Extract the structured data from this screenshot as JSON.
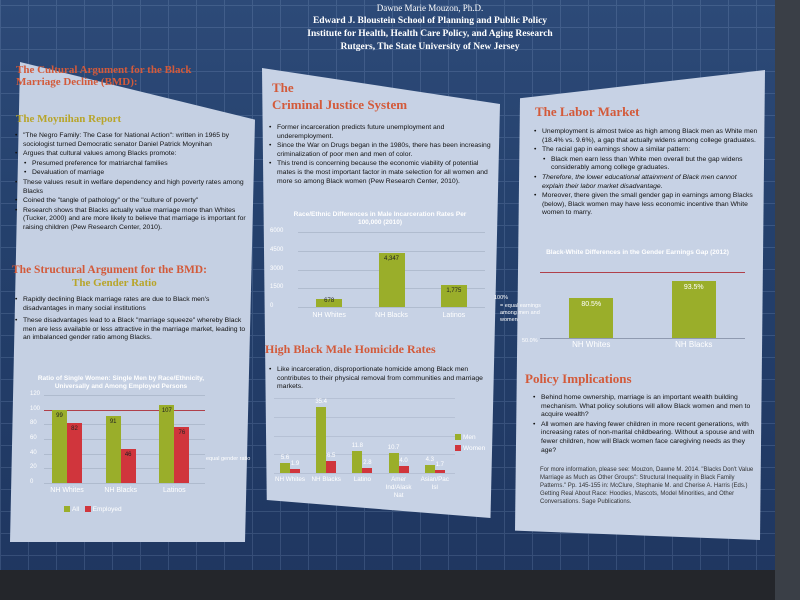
{
  "header": {
    "name": "Dawne Marie Mouzon, Ph.D.",
    "school": "Edward J. Bloustein School of Planning and Public Policy",
    "institute": "Institute for Health, Health Care Policy, and Aging Research",
    "university": "Rutgers, The State University of New Jersey"
  },
  "left": {
    "h1": "The Cultural Argument for the Black Marriage Decline (BMD):",
    "h1_sub": "The Moynihan Report",
    "bullets": [
      "\"The Negro Family: The Case for National Action\": written in 1965 by sociologist turned Democratic senator Daniel Patrick Moynihan",
      "Argues that cultural values among Blacks promote:",
      "Presumed preference for matriarchal families",
      "Devaluation of marriage",
      "These values result in welfare dependency and high poverty rates among Blacks",
      "Coined the \"tangle of pathology\" or the \"culture of poverty\"",
      "Research shows that Blacks actually value marriage more than Whites (Tucker, 2000) and are more likely to believe that marriage is important for raising children (Pew Research Center, 2010)."
    ],
    "h2": "The Structural Argument for the BMD:",
    "h2_sub": "The Gender Ratio",
    "bullets2": [
      "Rapidly declining Black marriage rates are due to Black men's disadvantages in many social institutions",
      "These disadvantages lead to a Black \"marriage squeeze\" whereby Black men are less available or less attractive in the marriage market, leading to an imbalanced gender ratio among Blacks."
    ],
    "chart_title": "Ratio of Single Women: Single Men by Race/Ethnicity, Universally and Among Employed Persons",
    "y_ticks": [
      "120",
      "100",
      "80",
      "60",
      "40",
      "20",
      "0"
    ],
    "equal_label": "equal gender ratio",
    "legend_all": "All",
    "legend_employed": "Employed"
  },
  "middle": {
    "h1": "The",
    "h1b": "Criminal Justice System",
    "bullets": [
      "Former incarceration predicts future unemployment and underemployment.",
      "Since the War on Drugs began in the 1980s, there has been increasing criminalization of poor men and men of color.",
      "This trend is concerning because the economic viability of potential mates is the most important factor in mate selection for all women and more so among Black women (Pew Research Center, 2010)."
    ],
    "chart_title": "Race/Ethnic Differences in Male Incarceration Rates Per 100,000 (2010)",
    "y_ticks": [
      "6000",
      "4500",
      "3000",
      "1500",
      "0"
    ],
    "h2": "High Black Male Homicide Rates",
    "bullets2": [
      "Like incarceration, disproportionate homicide among Black men contributes to their physical removal from communities and marriage markets."
    ],
    "legend_men": "Men",
    "legend_women": "Women"
  },
  "right": {
    "h1": "The Labor Market",
    "bullets": [
      "Unemployment is almost twice as high among Black men as White men (18.4% vs. 9.6%), a gap that actually widens among college graduates.",
      "The racial gap in earnings show a similar pattern:",
      "Black men earn less than White men overall but the gap widens considerably among college graduates.",
      "Therefore, the lower educational attainment of Black men cannot explain their labor market disadvantage.",
      "Moreover, there given the small gender gap in earnings among Blacks (below), Black women may have less economic incentive than White women to marry."
    ],
    "chart_title": "Black-White Differences in the Gender Earnings Gap (2012)",
    "note_100": "100%",
    "note_equal": "= equal earnings among men and women",
    "note_50": "50.0%",
    "h2": "Policy Implications",
    "bullets2": [
      "Behind home ownership, marriage is an important wealth building mechanism. What policy solutions will allow Black women and men to acquire wealth?",
      "All women are having fewer children in more recent generations, with increasing rates of non-marital childbearing. Without a spouse and with fewer children, how will Black women face caregiving needs as they age?"
    ],
    "refs": "For more information, please see: Mouzon, Dawne M. 2014. \"Blacks Don't Value Marriage as Much as Other Groups\": Structural Inequality in Black Family Patterns.\" Pp. 145-155 in: McClure, Stephanie M. and Cherise A. Harris (Eds.) Getting Real About Race: Hoodies, Mascots, Model Minorities, and Other Conversations. Sage Publications."
  },
  "colors": {
    "green": "#9aae2a",
    "red": "#d0353c",
    "chart_bg": "#2f4a78"
  },
  "chart_data": [
    {
      "type": "bar",
      "title": "Ratio of Single Women: Single Men by Race/Ethnicity, Universally and Among Employed Persons",
      "categories": [
        "NH Whites",
        "NH Blacks",
        "Latinos"
      ],
      "series": [
        {
          "name": "All",
          "values": [
            99,
            91,
            107
          ]
        },
        {
          "name": "Employed",
          "values": [
            82,
            46,
            76
          ]
        }
      ],
      "ylim": [
        0,
        120
      ]
    },
    {
      "type": "bar",
      "title": "Race/Ethnic Differences in Male Incarceration Rates Per 100,000 (2010)",
      "categories": [
        "NH Whites",
        "NH Blacks",
        "Latinos"
      ],
      "values": [
        678,
        4347,
        1775
      ],
      "value_labels": [
        "678",
        "4,347",
        "1,775"
      ],
      "ylim": [
        0,
        6000
      ]
    },
    {
      "type": "bar",
      "title": "Homicide Rates",
      "categories": [
        "NH Whites",
        "NH Blacks",
        "Latino",
        "Amer Ind/Alask Nat",
        "Asian/Pac Isl"
      ],
      "series": [
        {
          "name": "Men",
          "values": [
            5.6,
            35.4,
            11.8,
            10.7,
            4.3
          ]
        },
        {
          "name": "Women",
          "values": [
            1.9,
            6.5,
            2.8,
            4.0,
            1.7
          ]
        }
      ],
      "value_labels_men": [
        "5.6",
        "35.4",
        "11.8",
        "10.7",
        "4.3"
      ],
      "value_labels_women": [
        "1.9",
        "6.5",
        "2.8",
        "4.0",
        "1.7"
      ],
      "ylim": [
        0,
        40
      ]
    },
    {
      "type": "bar",
      "title": "Black-White Differences in the Gender Earnings Gap (2012)",
      "categories": [
        "NH Whites",
        "NH Blacks"
      ],
      "values": [
        80.5,
        93.5
      ],
      "value_labels": [
        "80.5%",
        "93.5%"
      ],
      "ylim": [
        50,
        100
      ]
    }
  ]
}
